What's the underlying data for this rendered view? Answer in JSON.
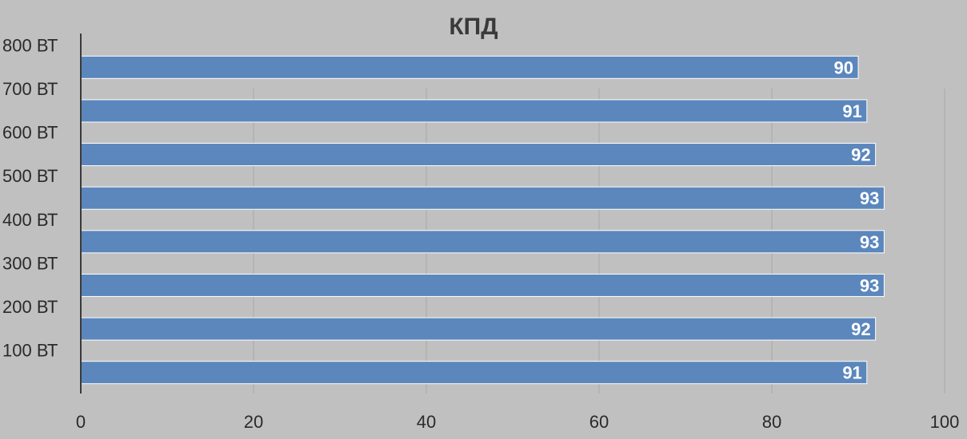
{
  "chart_data": {
    "type": "bar",
    "orientation": "horizontal",
    "title": "КПД",
    "categories": [
      "800 ВТ",
      "700 ВТ",
      "600 ВТ",
      "500 ВТ",
      "400 ВТ",
      "300 ВТ",
      "200 ВТ",
      "100 ВТ"
    ],
    "values": [
      90,
      91,
      92,
      93,
      93,
      93,
      92,
      91
    ],
    "data_labels": [
      "90",
      "91",
      "92",
      "93",
      "93",
      "93",
      "92",
      "91"
    ],
    "xlim": [
      0,
      100
    ],
    "x_ticks": [
      0,
      20,
      40,
      60,
      80,
      100
    ],
    "x_tick_labels": [
      "0",
      "20",
      "40",
      "60",
      "80",
      "100"
    ],
    "grid": "vertical",
    "legend": "none",
    "colors": {
      "background": "#c0c0c0",
      "bar": "#5b87bd",
      "bar_border": "#ffffff",
      "grid": "#a8a8a8",
      "axis": "#3a3a3a",
      "data_label": "#ffffff"
    }
  }
}
